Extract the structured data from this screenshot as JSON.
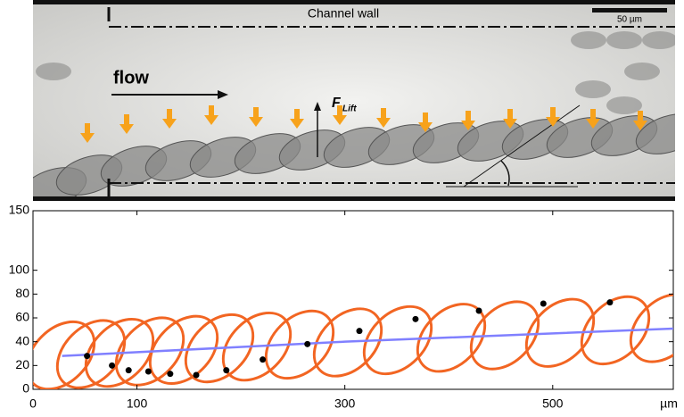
{
  "micrograph": {
    "wall_label": "Channel wall",
    "scale_label": "50 µm",
    "flow_label": "flow",
    "force_symbol": "F",
    "force_subscript": "Lift"
  },
  "chart_data": {
    "type": "scatter",
    "x_label": "µm",
    "xlim": [
      0,
      616
    ],
    "ylim": [
      0,
      150
    ],
    "xticks": [
      0,
      100,
      300,
      500
    ],
    "yticks": [
      0,
      20,
      40,
      60,
      80,
      100,
      150
    ],
    "series": [
      {
        "type": "scatter",
        "color": "#000000",
        "x": [
          52,
          76,
          92,
          111,
          132,
          157,
          186,
          221,
          264,
          314,
          368,
          429,
          491,
          555
        ],
        "values": [
          28,
          20,
          16,
          15,
          13,
          12,
          16,
          25,
          38,
          49,
          59,
          66,
          72,
          73
        ]
      },
      {
        "type": "line",
        "color": "#8080ff",
        "x": [
          28,
          300,
          616
        ],
        "values": [
          28,
          40,
          51
        ]
      }
    ]
  }
}
